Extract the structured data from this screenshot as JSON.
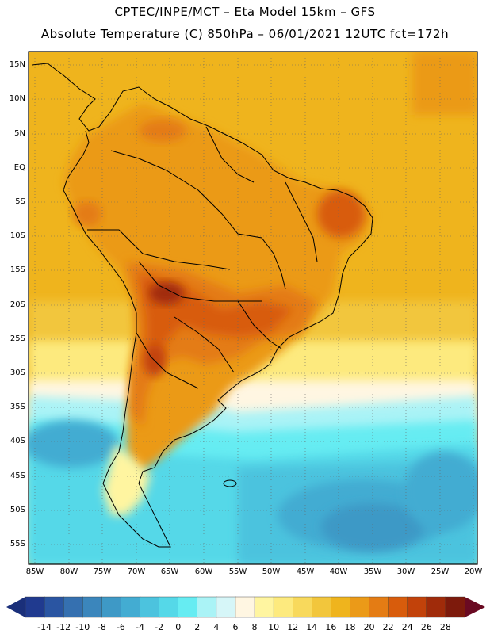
{
  "header": {
    "line1": "CPTEC/INPE/MCT  –   Eta Model 15km – GFS",
    "line2": "Absolute Temperature (C) 850hPa – 06/01/2021 12UTC fct=172h"
  },
  "axes": {
    "lat_labels": [
      "15N",
      "10N",
      "5N",
      "EQ",
      "5S",
      "10S",
      "15S",
      "20S",
      "25S",
      "30S",
      "35S",
      "40S",
      "45S",
      "50S",
      "55S"
    ],
    "lon_labels": [
      "85W",
      "80W",
      "75W",
      "70W",
      "65W",
      "60W",
      "55W",
      "50W",
      "45W",
      "40W",
      "35W",
      "30W",
      "25W",
      "20W"
    ]
  },
  "colorbar": {
    "ticks": [
      "-14",
      "-12",
      "-10",
      "-8",
      "-6",
      "-4",
      "-2",
      "0",
      "2",
      "4",
      "6",
      "8",
      "10",
      "12",
      "14",
      "16",
      "18",
      "20",
      "22",
      "24",
      "26",
      "28"
    ],
    "colors": [
      "#203a8f",
      "#2a55a2",
      "#3570b0",
      "#3b86bc",
      "#3e99c6",
      "#43acd2",
      "#4cc3de",
      "#55d8e8",
      "#66ecf2",
      "#aaf3f6",
      "#d6f6f8",
      "#fff6e2",
      "#fff5a0",
      "#fdea7e",
      "#f8d95c",
      "#f2c63c",
      "#efb41d",
      "#eb9a18",
      "#e47c14",
      "#d85c0c",
      "#c2420a",
      "#a02b0a",
      "#7d1a0c"
    ],
    "arrow_left": "#1a2f7a",
    "arrow_right": "#6a0a22"
  }
}
